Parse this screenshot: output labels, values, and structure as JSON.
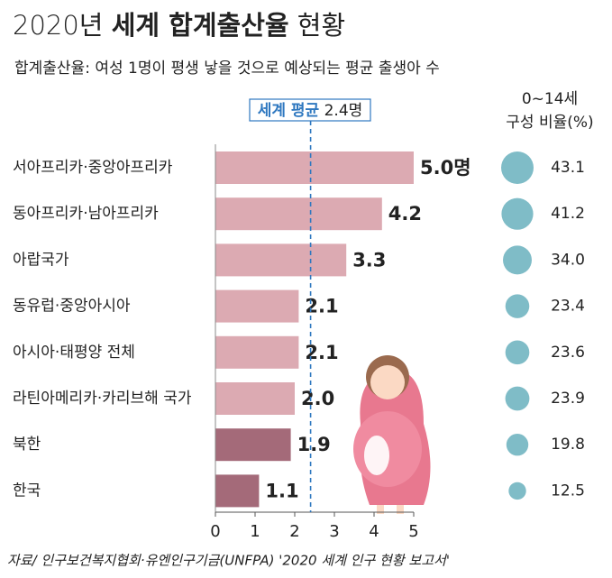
{
  "chart_data": {
    "type": "bar",
    "title": [
      "2020년",
      "세계 합계출산율",
      "현황"
    ],
    "subtitle": "합계출산율: 여성 1명이 평생 낳을 것으로 예상되는 평균 출생아 수",
    "categories": [
      "서아프리카·중앙아프리카",
      "동아프리카·남아프리카",
      "아랍국가",
      "동유럽·중앙아시아",
      "아시아·태평양 전체",
      "라틴아메리카·카리브해 국가",
      "북한",
      "한국"
    ],
    "values": [
      5.0,
      4.2,
      3.3,
      2.1,
      2.1,
      2.0,
      1.9,
      1.1
    ],
    "value_labels": [
      "5.0명",
      "4.2",
      "3.3",
      "2.1",
      "2.1",
      "2.0",
      "1.9",
      "1.1"
    ],
    "colors": [
      "#dcaab2",
      "#dcaab2",
      "#dcaab2",
      "#dcaab2",
      "#dcaab2",
      "#dcaab2",
      "#a46a79",
      "#a46a79"
    ],
    "label_colors": [
      "#222222",
      "#222222",
      "#222222",
      "#222222",
      "#222222",
      "#222222",
      "#9c5a6b",
      "#9c5a6b"
    ],
    "xlim": [
      0,
      5
    ],
    "xticks": [
      0,
      1,
      2,
      3,
      4,
      5
    ],
    "average": {
      "label": "세계 평균",
      "value": 2.4,
      "value_label": "2.4명",
      "color": "#2f78c0"
    },
    "bubbles": {
      "header": [
        "0~14세",
        "구성 비율(%)"
      ],
      "color": "#7fbcc7",
      "values": [
        43.1,
        41.2,
        34.0,
        23.4,
        23.6,
        23.9,
        19.8,
        12.5
      ],
      "value_labels": [
        "43.1",
        "41.2",
        "34.0",
        "23.4",
        "23.6",
        "23.9",
        "19.8",
        "12.5"
      ]
    },
    "source": "자료/ 인구보건복지협회·유엔인구기금(UNFPA) '2020 세계 인구 현황 보고서'"
  }
}
